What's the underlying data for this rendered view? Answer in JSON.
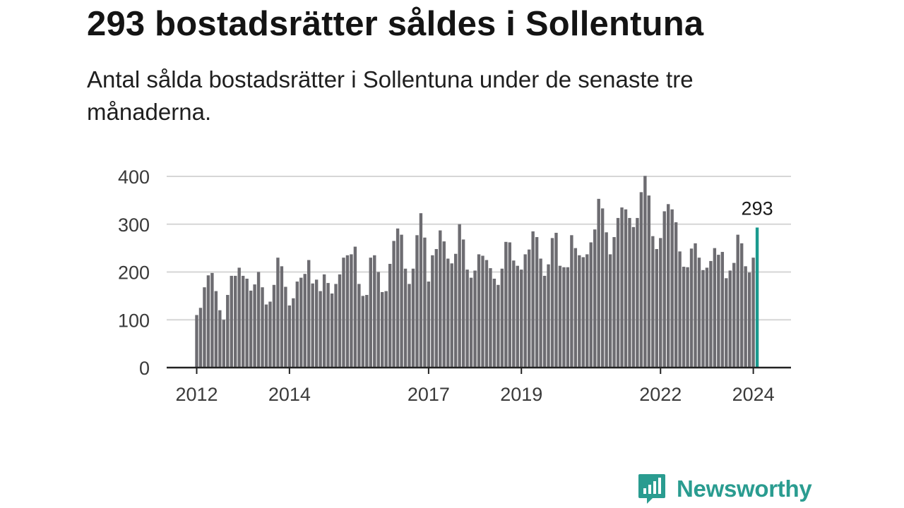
{
  "title": "293 bostadsrätter såldes i Sollentuna",
  "subtitle": "Antal sålda bostadsrätter i Sollentuna under de senaste tre månaderna.",
  "brand": {
    "name": "Newsworthy",
    "icon": "newsworthy-logo-icon",
    "color": "#2a9c90"
  },
  "chart_data": {
    "type": "bar",
    "start": "2012-01",
    "frequency": "monthly",
    "y_ticks": [
      0,
      100,
      200,
      300,
      400
    ],
    "ylim": [
      0,
      400
    ],
    "x_ticks": [
      "2012",
      "2014",
      "2017",
      "2019",
      "2022",
      "2024"
    ],
    "grid": true,
    "bar_color": "#6d6c71",
    "highlight_color": "#1a9a8e",
    "highlight_label": "293",
    "values": [
      110,
      125,
      168,
      193,
      198,
      160,
      120,
      100,
      152,
      192,
      192,
      209,
      192,
      186,
      161,
      174,
      200,
      168,
      132,
      138,
      173,
      230,
      212,
      169,
      130,
      145,
      180,
      188,
      196,
      225,
      176,
      184,
      160,
      195,
      177,
      155,
      175,
      195,
      230,
      235,
      237,
      253,
      175,
      150,
      152,
      230,
      235,
      200,
      158,
      160,
      217,
      265,
      291,
      278,
      207,
      175,
      207,
      277,
      323,
      272,
      180,
      235,
      248,
      287,
      264,
      228,
      218,
      238,
      300,
      268,
      205,
      188,
      203,
      237,
      234,
      225,
      208,
      186,
      173,
      207,
      263,
      262,
      224,
      213,
      205,
      237,
      247,
      285,
      273,
      228,
      192,
      216,
      271,
      282,
      213,
      210,
      210,
      277,
      250,
      235,
      231,
      237,
      262,
      289,
      353,
      333,
      283,
      237,
      273,
      313,
      335,
      331,
      313,
      294,
      313,
      367,
      401,
      360,
      275,
      248,
      271,
      327,
      342,
      331,
      304,
      243,
      211,
      210,
      249,
      260,
      230,
      204,
      209,
      223,
      250,
      236,
      242,
      187,
      203,
      219,
      278,
      260,
      212,
      199,
      230,
      293
    ]
  }
}
